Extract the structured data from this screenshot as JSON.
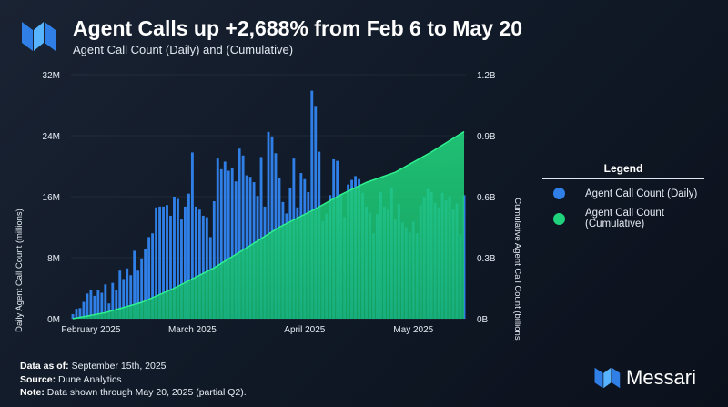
{
  "header": {
    "title": "Agent Calls up +2,688% from Feb 6 to May 20",
    "subtitle": "Agent Call Count (Daily) and (Cumulative)"
  },
  "legend": {
    "title": "Legend",
    "items": [
      {
        "label": "Agent Call Count (Daily)",
        "color": "#2f7fe6"
      },
      {
        "label": "Agent Call Count (Cumulative)",
        "color": "#1fd37d"
      }
    ]
  },
  "footer": {
    "as_of_label": "Data as of:",
    "as_of_value": " September 15th, 2025",
    "source_label": "Source:",
    "source_value": " Dune Analytics",
    "note_label": "Note:",
    "note_value": " Data shown through May 20, 2025 (partial Q2)."
  },
  "brand": {
    "name": "Messari"
  },
  "chart_data": {
    "type": "bar+area",
    "title": "Agent Calls up +2,688% from Feb 6 to May 20",
    "subtitle": "Agent Call Count (Daily) and (Cumulative)",
    "ylabel_left": "Daily Agent Call Count (millions)",
    "ylabel_right": "Cumulative Agent Call Count (billions)",
    "ylim_left": [
      0,
      32
    ],
    "ylim_right": [
      0,
      1.2
    ],
    "yticks_left": [
      "0M",
      "8M",
      "16M",
      "24M",
      "32M"
    ],
    "yticks_right": [
      "0B",
      "0.3B",
      "0.6B",
      "0.9B",
      "1.2B"
    ],
    "xticks": [
      {
        "label": "February 2025",
        "day": 6
      },
      {
        "label": "March 2025",
        "day": 34
      },
      {
        "label": "April 2025",
        "day": 65
      },
      {
        "label": "May 2025",
        "day": 95
      }
    ],
    "x_range_days": [
      1,
      109
    ],
    "daily_start_day": 1,
    "daily": [
      0.6,
      1.3,
      1.4,
      2.2,
      3.3,
      3.7,
      3.0,
      3.7,
      3.4,
      4.5,
      2.0,
      4.7,
      3.7,
      6.3,
      5.2,
      6.6,
      5.7,
      8.9,
      6.3,
      7.9,
      9.2,
      10.7,
      11.2,
      14.6,
      14.7,
      14.7,
      14.9,
      13.5,
      16.0,
      15.7,
      13.0,
      14.7,
      16.4,
      21.8,
      14.7,
      14.3,
      13.5,
      13.3,
      10.7,
      15.4,
      21.0,
      19.6,
      20.6,
      19.4,
      19.7,
      18.0,
      22.3,
      21.4,
      18.8,
      18.6,
      17.9,
      16.1,
      21.2,
      14.7,
      24.5,
      23.9,
      21.7,
      18.4,
      15.3,
      13.8,
      17.2,
      21.0,
      14.6,
      19.1,
      18.3,
      16.6,
      29.9,
      27.9,
      21.9,
      12.8,
      13.8,
      16.2,
      20.9,
      20.7,
      16.3,
      13.3,
      17.6,
      18.2,
      18.7,
      18.3,
      16.5,
      14.7,
      13.9,
      11.2,
      13.7,
      16.6,
      14.7,
      14.3,
      17.1,
      13.0,
      15.0,
      12.6,
      12.0,
      11.3,
      12.7,
      11.2,
      14.9,
      16.0,
      17.0,
      16.6,
      15.2,
      14.6,
      16.5,
      15.5,
      16.0,
      14.3,
      15.1,
      11.1,
      16.2
    ],
    "cumulative": [
      {
        "day": 1,
        "value": 0.0
      },
      {
        "day": 10,
        "value": 0.03
      },
      {
        "day": 20,
        "value": 0.08
      },
      {
        "day": 29,
        "value": 0.15
      },
      {
        "day": 40,
        "value": 0.25
      },
      {
        "day": 50,
        "value": 0.36
      },
      {
        "day": 58,
        "value": 0.45
      },
      {
        "day": 68,
        "value": 0.54
      },
      {
        "day": 75,
        "value": 0.61
      },
      {
        "day": 82,
        "value": 0.67
      },
      {
        "day": 90,
        "value": 0.72
      },
      {
        "day": 100,
        "value": 0.82
      },
      {
        "day": 109,
        "value": 0.92
      }
    ]
  }
}
